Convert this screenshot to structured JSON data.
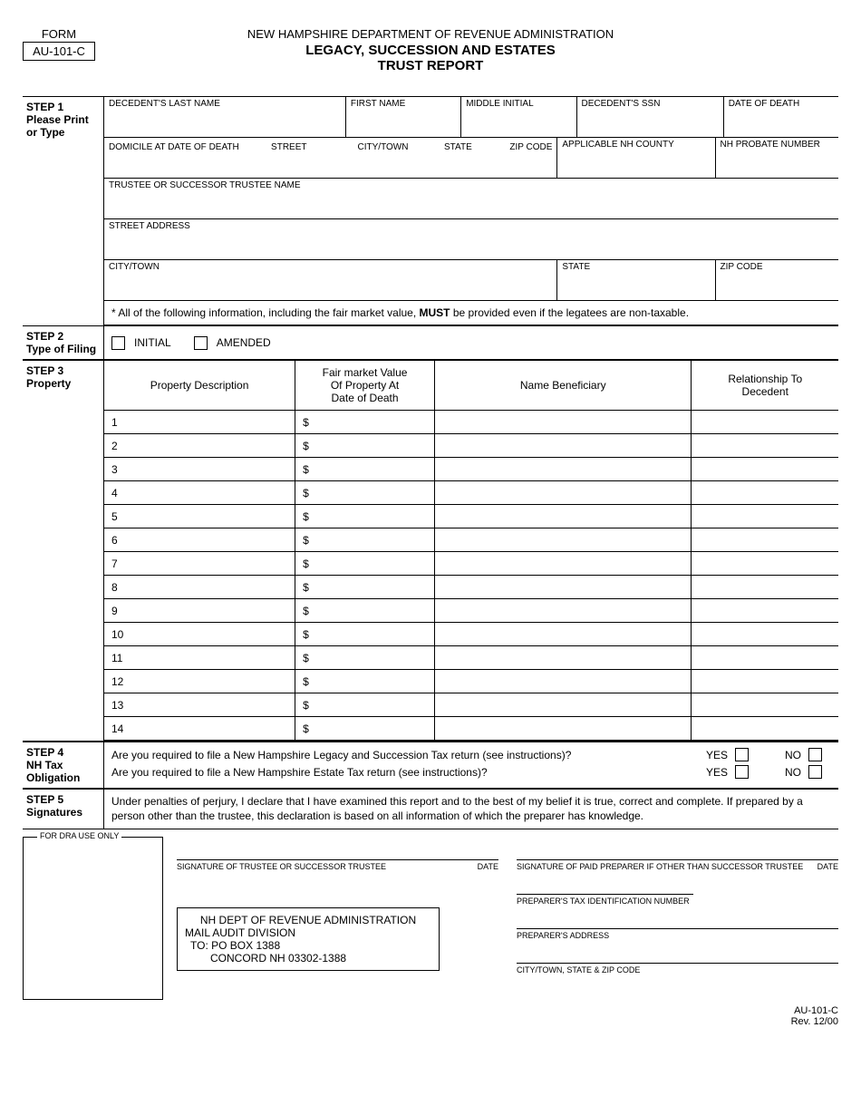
{
  "form": {
    "label": "FORM",
    "code": "AU-101-C"
  },
  "header": {
    "dept": "NEW HAMPSHIRE DEPARTMENT OF REVENUE ADMINISTRATION",
    "title1": "LEGACY, SUCCESSION AND ESTATES",
    "title2": "TRUST REPORT"
  },
  "step1": {
    "label": "STEP 1",
    "sub": "Please Print or Type",
    "fields": {
      "lastname": "DECEDENT'S LAST NAME",
      "firstname": "FIRST NAME",
      "mi": "MIDDLE INITIAL",
      "ssn": "DECEDENT'S SSN",
      "dod": "DATE OF DEATH",
      "domicile": "DOMICILE AT DATE OF DEATH",
      "street": "STREET",
      "city": "CITY/TOWN",
      "state": "STATE",
      "zip": "ZIP CODE",
      "county": "APPLICABLE NH COUNTY",
      "probate": "NH PROBATE NUMBER",
      "trustee": "TRUSTEE OR SUCCESSOR TRUSTEE NAME",
      "streetaddr": "STREET ADDRESS",
      "city2": "CITY/TOWN",
      "state2": "STATE",
      "zip2": "ZIP CODE"
    },
    "note_pre": "* All of the following information, including the fair market value, ",
    "note_bold": "MUST",
    "note_post": " be provided even if the legatees are non-taxable."
  },
  "step2": {
    "label": "STEP 2",
    "sub": "Type of Filing",
    "initial": "INITIAL",
    "amended": "AMENDED"
  },
  "step3": {
    "label": "STEP 3",
    "sub": "Property",
    "headers": {
      "desc": "Property Description",
      "fmv1": "Fair market Value",
      "fmv2": "Of Property At",
      "fmv3": "Date of Death",
      "benef": "Name Beneficiary",
      "rel1": "Relationship To",
      "rel2": "Decedent"
    },
    "rows": [
      "1",
      "2",
      "3",
      "4",
      "5",
      "6",
      "7",
      "8",
      "9",
      "10",
      "11",
      "12",
      "13",
      "14"
    ],
    "dollar": "$"
  },
  "step4": {
    "label": "STEP 4",
    "sub": "NH Tax Obligation",
    "q1": "Are you required to file a New Hampshire Legacy and Succession Tax return (see instructions)?",
    "q2": "Are you required to file a New Hampshire Estate Tax return (see instructions)?",
    "yes": "YES",
    "no": "NO"
  },
  "step5": {
    "label": "STEP 5",
    "sub": "Signatures",
    "decl": "Under penalties of perjury, I declare that I have examined this report and to the best of my belief it is true, correct and complete. If prepared by a person other than the trustee, this declaration is based on all information of which the preparer has knowledge."
  },
  "dra": "FOR DRA USE ONLY",
  "sig": {
    "trustee": "SIGNATURE OF TRUSTEE OR SUCCESSOR TRUSTEE",
    "date": "DATE",
    "preparer": "SIGNATURE OF PAID PREPARER IF OTHER THAN SUCCESSOR TRUSTEE",
    "tin": "PREPARER'S TAX IDENTIFICATION NUMBER",
    "addr": "PREPARER'S ADDRESS",
    "csz": "CITY/TOWN, STATE & ZIP CODE"
  },
  "mail": {
    "dept": "NH DEPT OF REVENUE ADMINISTRATION",
    "l1": "MAIL AUDIT DIVISION",
    "l2": "TO: PO BOX 1388",
    "l3": "CONCORD NH 03302-1388"
  },
  "footer": {
    "code": "AU-101-C",
    "rev": "Rev. 12/00"
  }
}
